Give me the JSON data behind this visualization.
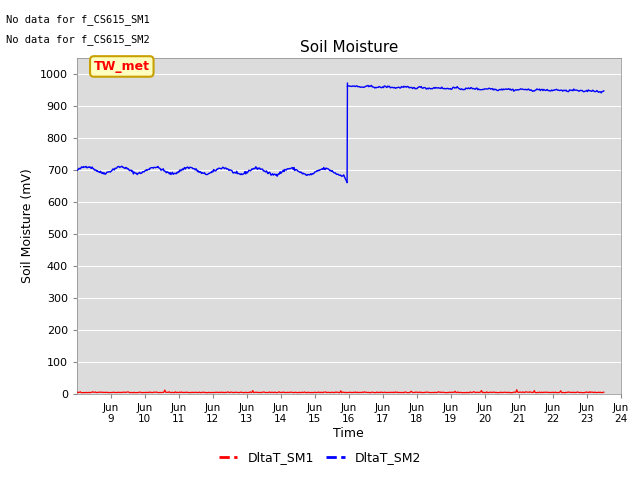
{
  "title": "Soil Moisture",
  "ylabel": "Soil Moisture (mV)",
  "xlabel": "Time",
  "ylim": [
    0,
    1050
  ],
  "yticks": [
    0,
    100,
    200,
    300,
    400,
    500,
    600,
    700,
    800,
    900,
    1000
  ],
  "no_data_text1": "No data for f_CS615_SM1",
  "no_data_text2": "No data for f_CS615_SM2",
  "tw_met_label": "TW_met",
  "legend_sm1": "DltaT_SM1",
  "legend_sm2": "DltaT_SM2",
  "sm1_color": "#ff0000",
  "sm2_color": "#0000ff",
  "bg_color": "#dcdcdc",
  "tw_met_bg": "#ffffc0",
  "tw_met_border": "#c8a000"
}
